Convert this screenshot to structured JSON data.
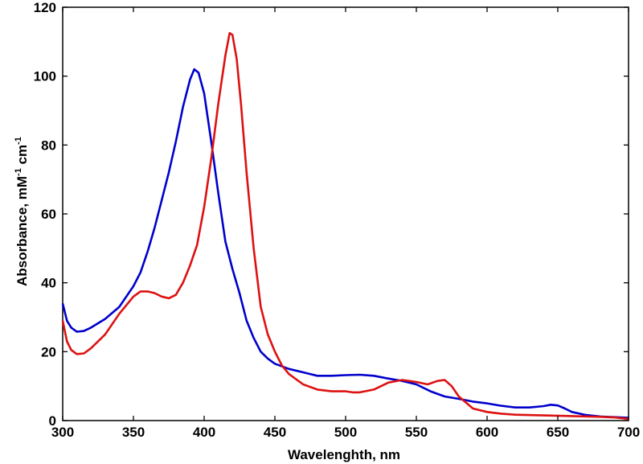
{
  "chart_data": {
    "type": "line",
    "xlabel": "Wavelenghth, nm",
    "ylabel": {
      "text": "Absorbance, mM",
      "exp1": "-1",
      "unit2": " cm",
      "exp2": "-1"
    },
    "xlim": [
      300,
      700
    ],
    "ylim": [
      0,
      120
    ],
    "xticks": [
      300,
      350,
      400,
      450,
      500,
      550,
      600,
      650,
      700
    ],
    "yticks": [
      0,
      20,
      40,
      60,
      80,
      100,
      120
    ],
    "grid": false,
    "legend": "none",
    "series": [
      {
        "color": "#0000cc",
        "points": [
          [
            300,
            34
          ],
          [
            303,
            29
          ],
          [
            306,
            27
          ],
          [
            310,
            25.8
          ],
          [
            315,
            26
          ],
          [
            320,
            27
          ],
          [
            330,
            29.5
          ],
          [
            340,
            33
          ],
          [
            350,
            39
          ],
          [
            355,
            43
          ],
          [
            360,
            49
          ],
          [
            365,
            56
          ],
          [
            370,
            64
          ],
          [
            375,
            72
          ],
          [
            380,
            81
          ],
          [
            385,
            91
          ],
          [
            390,
            99
          ],
          [
            393,
            102
          ],
          [
            396,
            101
          ],
          [
            400,
            95
          ],
          [
            405,
            81
          ],
          [
            410,
            66
          ],
          [
            415,
            52
          ],
          [
            420,
            44
          ],
          [
            425,
            37
          ],
          [
            430,
            29
          ],
          [
            435,
            24
          ],
          [
            440,
            20
          ],
          [
            445,
            18
          ],
          [
            450,
            16.5
          ],
          [
            460,
            15
          ],
          [
            470,
            14
          ],
          [
            480,
            13
          ],
          [
            490,
            13
          ],
          [
            500,
            13.2
          ],
          [
            510,
            13.3
          ],
          [
            520,
            13
          ],
          [
            530,
            12.2
          ],
          [
            540,
            11.5
          ],
          [
            550,
            10.5
          ],
          [
            560,
            8.5
          ],
          [
            570,
            7
          ],
          [
            580,
            6.3
          ],
          [
            590,
            5.5
          ],
          [
            600,
            5
          ],
          [
            610,
            4.3
          ],
          [
            620,
            3.8
          ],
          [
            630,
            3.8
          ],
          [
            640,
            4.2
          ],
          [
            645,
            4.6
          ],
          [
            650,
            4.4
          ],
          [
            655,
            3.5
          ],
          [
            660,
            2.5
          ],
          [
            670,
            1.6
          ],
          [
            680,
            1.2
          ],
          [
            690,
            1
          ],
          [
            700,
            0.8
          ]
        ]
      },
      {
        "color": "#dd1111",
        "points": [
          [
            300,
            29
          ],
          [
            303,
            23
          ],
          [
            306,
            20.5
          ],
          [
            310,
            19.3
          ],
          [
            315,
            19.5
          ],
          [
            320,
            21
          ],
          [
            330,
            25
          ],
          [
            340,
            31
          ],
          [
            350,
            36
          ],
          [
            355,
            37.5
          ],
          [
            360,
            37.5
          ],
          [
            365,
            37
          ],
          [
            370,
            36
          ],
          [
            375,
            35.5
          ],
          [
            380,
            36.5
          ],
          [
            385,
            40
          ],
          [
            390,
            45
          ],
          [
            395,
            51
          ],
          [
            400,
            62
          ],
          [
            405,
            76
          ],
          [
            410,
            92
          ],
          [
            415,
            106
          ],
          [
            418,
            112.5
          ],
          [
            420,
            112
          ],
          [
            423,
            105
          ],
          [
            426,
            92
          ],
          [
            430,
            72
          ],
          [
            435,
            50
          ],
          [
            440,
            33
          ],
          [
            445,
            25
          ],
          [
            450,
            20
          ],
          [
            455,
            16
          ],
          [
            460,
            13.5
          ],
          [
            470,
            10.5
          ],
          [
            480,
            9
          ],
          [
            490,
            8.5
          ],
          [
            500,
            8.5
          ],
          [
            505,
            8.2
          ],
          [
            510,
            8.2
          ],
          [
            520,
            9
          ],
          [
            530,
            11
          ],
          [
            540,
            11.8
          ],
          [
            550,
            11.2
          ],
          [
            558,
            10.5
          ],
          [
            565,
            11.5
          ],
          [
            570,
            11.8
          ],
          [
            575,
            10
          ],
          [
            580,
            7
          ],
          [
            590,
            3.5
          ],
          [
            600,
            2.5
          ],
          [
            610,
            2
          ],
          [
            620,
            1.7
          ],
          [
            640,
            1.5
          ],
          [
            660,
            1.3
          ],
          [
            680,
            1.1
          ],
          [
            690,
            0.9
          ],
          [
            700,
            0.5
          ]
        ]
      }
    ]
  }
}
